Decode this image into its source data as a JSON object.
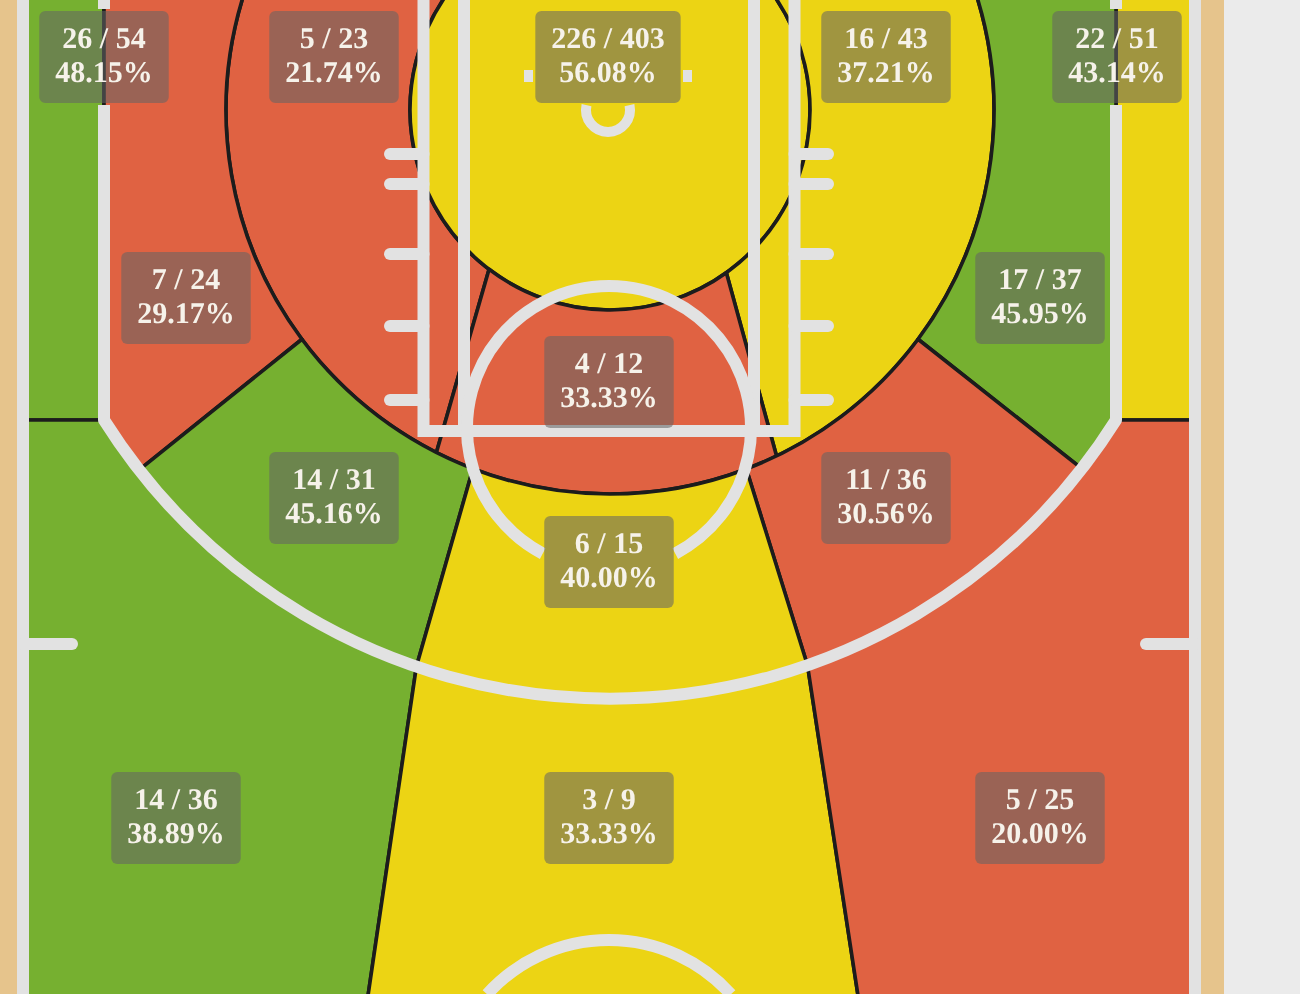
{
  "chart_data": {
    "type": "other",
    "categories": [
      null,
      null,
      null,
      null,
      null,
      null,
      null,
      null,
      null,
      null,
      null,
      null,
      null,
      null
    ],
    "values": [
      48.15,
      21.74,
      56.08,
      37.21,
      43.14,
      29.17,
      45.95,
      33.33,
      45.16,
      30.56,
      40.0,
      38.89,
      33.33,
      20.0
    ],
    "value_labels": [
      "26 / 54\n48.15%",
      "5 / 23\n21.74%",
      "226 / 403\n56.08%",
      "16 / 43\n37.21%",
      "22 / 51\n43.14%",
      "7 / 24\n29.17%",
      "17 / 37\n45.95%",
      "4 / 12\n33.33%",
      "14 / 31\n45.16%",
      "11 / 36\n30.56%",
      "6 / 15\n40.00%",
      "14 / 36\n38.89%",
      "3 / 9\n33.33%",
      "5 / 25\n20.00%"
    ],
    "colors": [
      "#76b030",
      "#e06242",
      "#ecd414",
      "#ecd414",
      "#ecd414",
      "#e06242",
      "#76b030",
      "#e06242",
      "#76b030",
      "#e06242",
      "#ecd414",
      "#76b030",
      "#ecd414",
      "#e06242"
    ]
  }
}
